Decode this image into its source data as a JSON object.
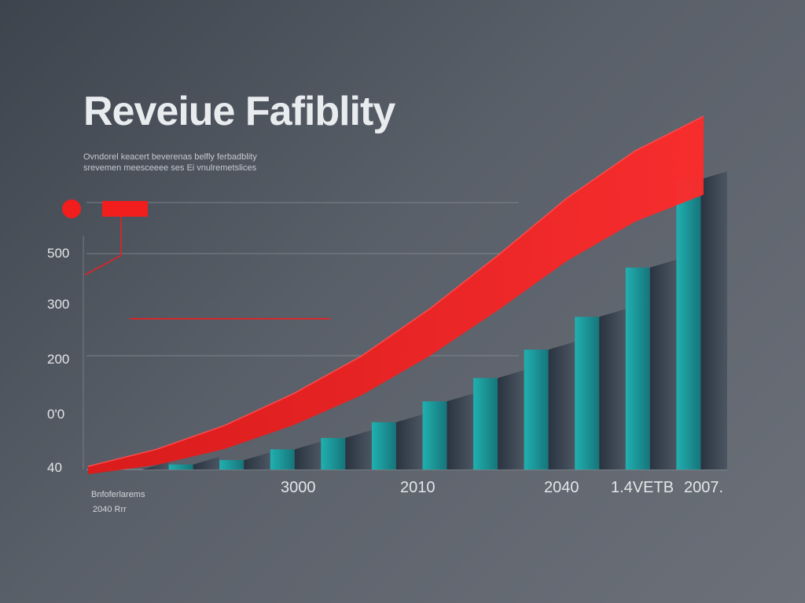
{
  "chart_data": {
    "type": "bar",
    "title": "Reveiue Fafiblity",
    "subtitle": [
      "Ovndorel keacert beverenas belfly ferbadblity",
      "srevemen meesceeee ses Ei vnulremetslices"
    ],
    "y_ticks": [
      "500",
      "300",
      "200",
      "0'0",
      "40"
    ],
    "x_ticks": [
      "3000",
      "2010",
      "2040",
      "1.4VETB",
      "2007."
    ],
    "footnote": [
      "Bnfoferlarems",
      "2040 Rrr"
    ],
    "values": [
      40,
      48,
      55,
      72,
      90,
      115,
      148,
      185,
      230,
      282,
      360,
      500
    ],
    "trend": [
      40,
      62,
      95,
      140,
      195,
      265,
      345,
      430,
      500,
      550
    ],
    "ylim": [
      40,
      560
    ],
    "grid": true,
    "colors": {
      "bar_face": "#2aa3a5",
      "bar_side": "#2e3a44",
      "trend": "#f21d1d",
      "grid": "#8d939b"
    }
  }
}
